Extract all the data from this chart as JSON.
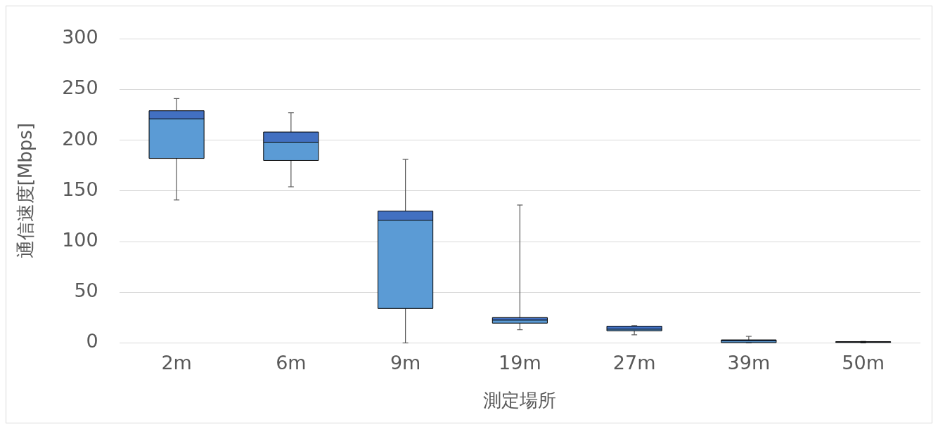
{
  "chart_data": {
    "type": "box",
    "xlabel": "測定場所",
    "ylabel": "通信速度[Mbps]",
    "categories": [
      "2m",
      "6m",
      "9m",
      "19m",
      "27m",
      "39m",
      "50m"
    ],
    "series": [
      {
        "color": "#5b9bd5",
        "boxes": [
          {
            "low": 141,
            "q1": 182,
            "median": 221,
            "q3": 229,
            "high": 241
          },
          {
            "low": 154,
            "q1": 180,
            "median": 198,
            "q3": 208,
            "high": 227
          },
          {
            "low": 0,
            "q1": 34,
            "median": 121,
            "q3": 130,
            "high": 181
          },
          {
            "low": 13,
            "q1": 19.5,
            "median": 22.5,
            "q3": 25,
            "high": 136
          },
          {
            "low": 8,
            "q1": 12,
            "median": 13.5,
            "q3": 16.5,
            "high": 17
          },
          {
            "low": 0,
            "q1": 0.3,
            "median": 2,
            "q3": 3,
            "high": 6.5
          },
          {
            "low": 0,
            "q1": 0.5,
            "median": 1,
            "q3": 1.2,
            "high": 1.5
          }
        ]
      }
    ],
    "ylim": [
      0,
      300
    ],
    "yticks": [
      0,
      50,
      100,
      150,
      200,
      250,
      300
    ],
    "grid": "y"
  }
}
